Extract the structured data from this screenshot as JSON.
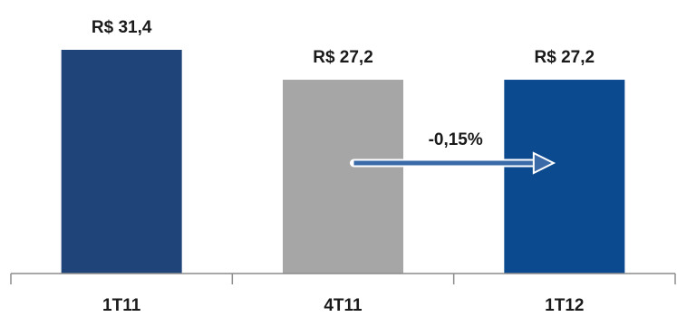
{
  "chart_data": {
    "type": "bar",
    "categories": [
      "1T11",
      "4T11",
      "1T12"
    ],
    "values": [
      31.4,
      27.2,
      27.2
    ],
    "data_labels": [
      "R$ 31,4",
      "R$ 27,2",
      "R$ 27,2"
    ],
    "bar_colors": [
      "#1f4479",
      "#a6a6a6",
      "#0b4a8f"
    ],
    "title": "",
    "xlabel": "",
    "ylabel": "",
    "ylim": [
      0,
      31.4
    ],
    "grid": false,
    "legend": "none",
    "annotation": {
      "label": "-0,15%",
      "from_category": "4T11",
      "to_category": "1T12",
      "arrow_color": "#3b6aa8"
    }
  }
}
